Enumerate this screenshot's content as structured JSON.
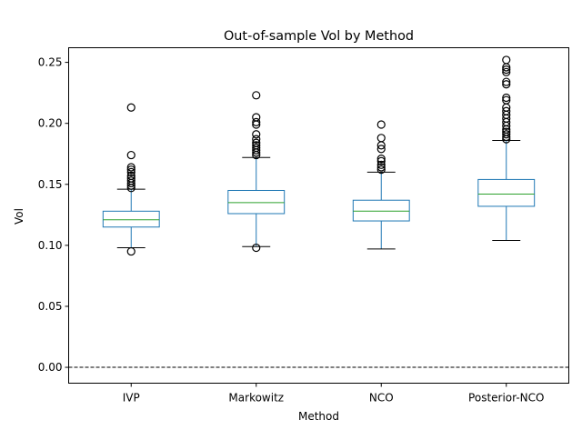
{
  "chart_data": {
    "type": "box",
    "title": "Out-of-sample Vol by Method",
    "xlabel": "Method",
    "ylabel": "Vol",
    "categories": [
      "IVP",
      "Markowitz",
      "NCO",
      "Posterior-NCO"
    ],
    "ylim": [
      -0.013,
      0.262
    ],
    "yticks": [
      0.0,
      0.05,
      0.1,
      0.15,
      0.2,
      0.25
    ],
    "ytick_labels": [
      "0.00",
      "0.05",
      "0.10",
      "0.15",
      "0.20",
      "0.25"
    ],
    "reference_line": {
      "y": 0.0,
      "style": "dashed",
      "color": "#000000"
    },
    "grid": false,
    "colors": {
      "box": "#1f77b4",
      "median": "#2ca02c",
      "whisker_cap": "#000000",
      "flier": "#000000",
      "reference": "#000000"
    },
    "boxes": [
      {
        "name": "IVP",
        "whisker_low": 0.098,
        "q1": 0.115,
        "median": 0.121,
        "q3": 0.128,
        "whisker_high": 0.146,
        "fliers": [
          0.095,
          0.147,
          0.149,
          0.151,
          0.153,
          0.155,
          0.157,
          0.16,
          0.162,
          0.164,
          0.174,
          0.213
        ]
      },
      {
        "name": "Markowitz",
        "whisker_low": 0.099,
        "q1": 0.126,
        "median": 0.135,
        "q3": 0.145,
        "whisker_high": 0.172,
        "fliers": [
          0.098,
          0.174,
          0.176,
          0.178,
          0.18,
          0.182,
          0.184,
          0.187,
          0.191,
          0.199,
          0.201,
          0.205,
          0.223
        ]
      },
      {
        "name": "NCO",
        "whisker_low": 0.097,
        "q1": 0.12,
        "median": 0.128,
        "q3": 0.137,
        "whisker_high": 0.16,
        "fliers": [
          0.162,
          0.164,
          0.166,
          0.169,
          0.171,
          0.179,
          0.182,
          0.188,
          0.199
        ]
      },
      {
        "name": "Posterior-NCO",
        "whisker_low": 0.104,
        "q1": 0.132,
        "median": 0.142,
        "q3": 0.154,
        "whisker_high": 0.186,
        "fliers": [
          0.187,
          0.189,
          0.191,
          0.193,
          0.195,
          0.198,
          0.201,
          0.204,
          0.207,
          0.21,
          0.213,
          0.219,
          0.221,
          0.232,
          0.234,
          0.242,
          0.244,
          0.246,
          0.252
        ]
      }
    ]
  }
}
